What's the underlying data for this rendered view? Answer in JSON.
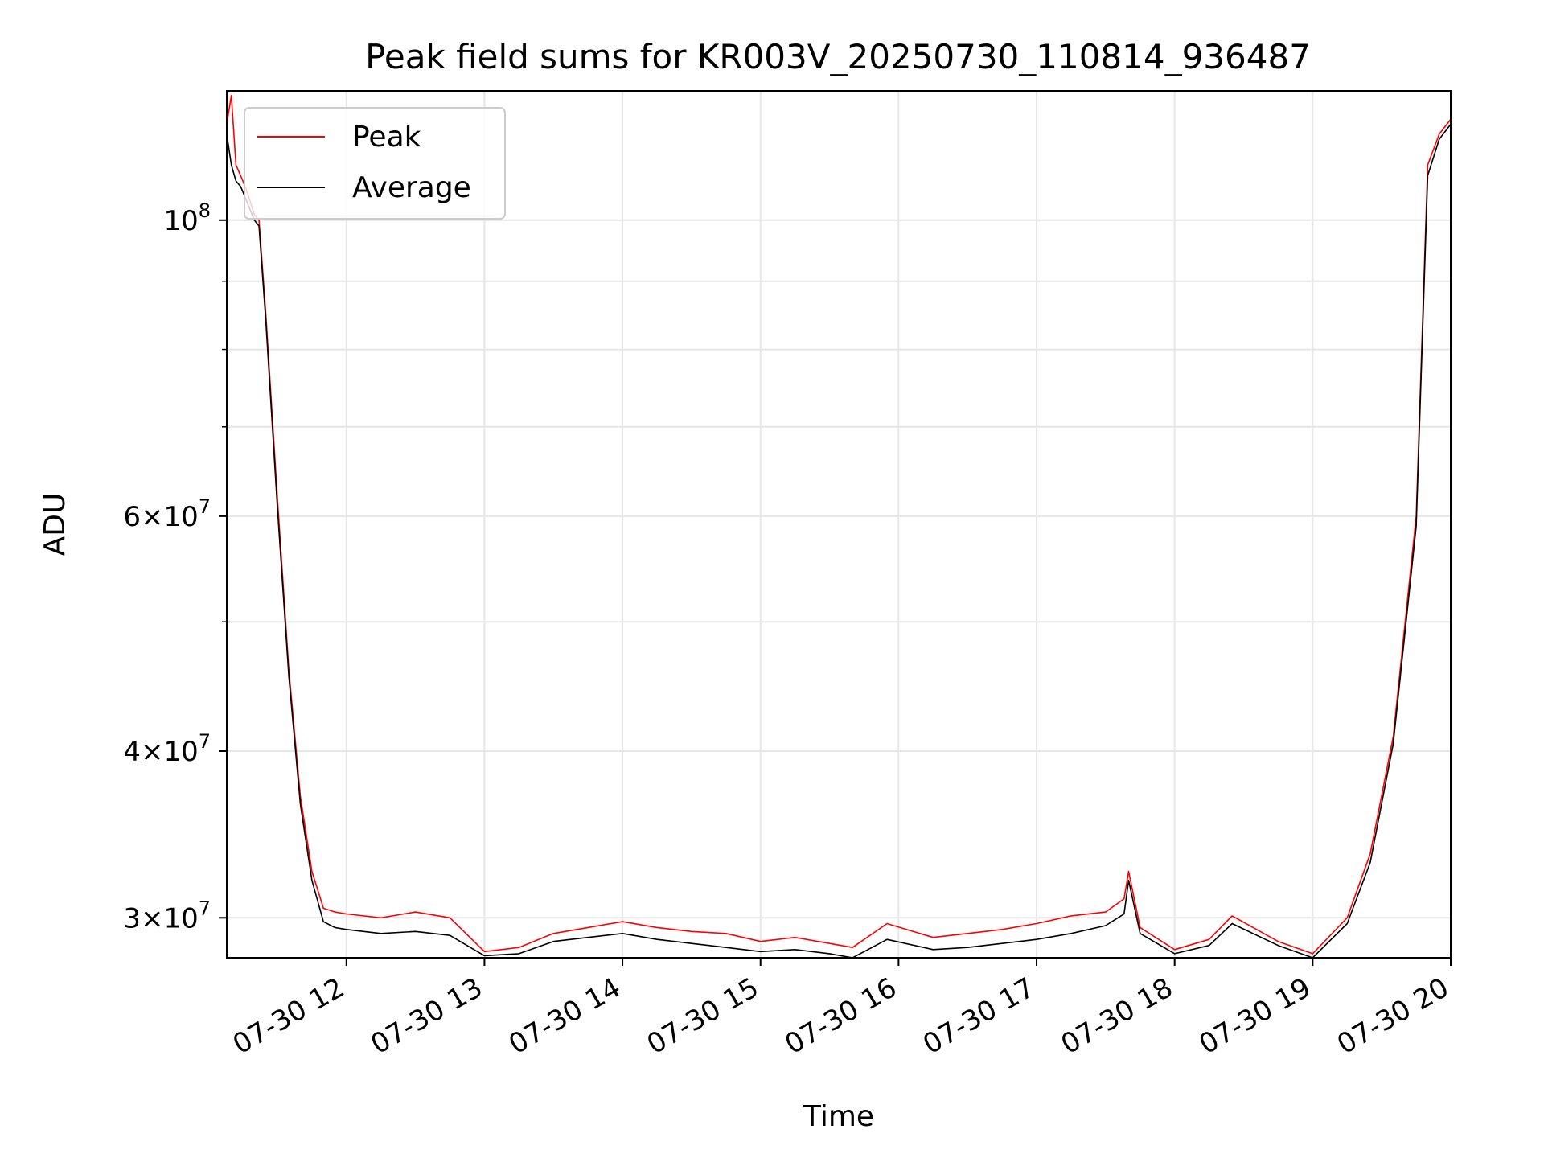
{
  "chart_data": {
    "type": "line",
    "title": "Peak field sums for KR003V_20250730_110814_936487",
    "xlabel": "Time",
    "ylabel": "ADU",
    "x_scale": "time",
    "y_scale": "log",
    "xlim": [
      "2025-07-30T11:08",
      "2025-07-30T20:00"
    ],
    "ylim": [
      28000000,
      125000000
    ],
    "x_ticks": [
      {
        "value": "2025-07-30T12:00",
        "label": "07-30 12"
      },
      {
        "value": "2025-07-30T13:00",
        "label": "07-30 13"
      },
      {
        "value": "2025-07-30T14:00",
        "label": "07-30 14"
      },
      {
        "value": "2025-07-30T15:00",
        "label": "07-30 15"
      },
      {
        "value": "2025-07-30T16:00",
        "label": "07-30 16"
      },
      {
        "value": "2025-07-30T17:00",
        "label": "07-30 17"
      },
      {
        "value": "2025-07-30T18:00",
        "label": "07-30 18"
      },
      {
        "value": "2025-07-30T19:00",
        "label": "07-30 19"
      },
      {
        "value": "2025-07-30T20:00",
        "label": "07-30 20"
      }
    ],
    "y_ticks": [
      {
        "value": 30000000,
        "mantissa": "3",
        "exponent": "7"
      },
      {
        "value": 40000000,
        "mantissa": "4",
        "exponent": "7"
      },
      {
        "value": 60000000,
        "mantissa": "6",
        "exponent": "7"
      },
      {
        "value": 100000000,
        "mantissa": "",
        "exponent": "8"
      }
    ],
    "y_minor_ticks": [
      50000000,
      70000000,
      80000000,
      90000000
    ],
    "grid": true,
    "legend_position": "top-left",
    "series": [
      {
        "name": "Peak",
        "color": "#ff0000",
        "x": [
          "2025-07-30T11:08",
          "2025-07-30T11:10",
          "2025-07-30T11:12",
          "2025-07-30T11:14",
          "2025-07-30T11:16",
          "2025-07-30T11:20",
          "2025-07-30T11:22",
          "2025-07-30T11:25",
          "2025-07-30T11:30",
          "2025-07-30T11:35",
          "2025-07-30T11:40",
          "2025-07-30T11:45",
          "2025-07-30T11:50",
          "2025-07-30T11:55",
          "2025-07-30T12:00",
          "2025-07-30T12:15",
          "2025-07-30T12:30",
          "2025-07-30T12:45",
          "2025-07-30T13:00",
          "2025-07-30T13:15",
          "2025-07-30T13:30",
          "2025-07-30T13:45",
          "2025-07-30T14:00",
          "2025-07-30T14:15",
          "2025-07-30T14:30",
          "2025-07-30T14:45",
          "2025-07-30T15:00",
          "2025-07-30T15:15",
          "2025-07-30T15:30",
          "2025-07-30T15:40",
          "2025-07-30T15:55",
          "2025-07-30T16:15",
          "2025-07-30T16:30",
          "2025-07-30T16:45",
          "2025-07-30T17:00",
          "2025-07-30T17:15",
          "2025-07-30T17:30",
          "2025-07-30T17:38",
          "2025-07-30T17:40",
          "2025-07-30T17:45",
          "2025-07-30T18:00",
          "2025-07-30T18:15",
          "2025-07-30T18:25",
          "2025-07-30T18:45",
          "2025-07-30T19:00",
          "2025-07-30T19:15",
          "2025-07-30T19:25",
          "2025-07-30T19:35",
          "2025-07-30T19:45",
          "2025-07-30T19:50",
          "2025-07-30T19:55",
          "2025-07-30T20:00"
        ],
        "y": [
          118000000,
          124000000,
          110000000,
          108000000,
          106000000,
          101000000,
          100000000,
          85000000,
          62000000,
          46000000,
          37000000,
          32500000,
          30500000,
          30300000,
          30200000,
          30000000,
          30300000,
          30000000,
          28300000,
          28500000,
          29200000,
          29500000,
          29800000,
          29500000,
          29300000,
          29200000,
          28800000,
          29000000,
          28700000,
          28500000,
          29700000,
          29000000,
          29200000,
          29400000,
          29700000,
          30100000,
          30300000,
          31000000,
          32500000,
          29500000,
          28400000,
          28900000,
          30100000,
          28800000,
          28200000,
          30000000,
          33500000,
          41000000,
          60000000,
          110000000,
          116000000,
          119000000
        ]
      },
      {
        "name": "Average",
        "color": "#000000",
        "x": [
          "2025-07-30T11:08",
          "2025-07-30T11:10",
          "2025-07-30T11:12",
          "2025-07-30T11:14",
          "2025-07-30T11:16",
          "2025-07-30T11:20",
          "2025-07-30T11:22",
          "2025-07-30T11:25",
          "2025-07-30T11:30",
          "2025-07-30T11:35",
          "2025-07-30T11:40",
          "2025-07-30T11:45",
          "2025-07-30T11:50",
          "2025-07-30T11:55",
          "2025-07-30T12:00",
          "2025-07-30T12:15",
          "2025-07-30T12:30",
          "2025-07-30T12:45",
          "2025-07-30T13:00",
          "2025-07-30T13:15",
          "2025-07-30T13:30",
          "2025-07-30T13:45",
          "2025-07-30T14:00",
          "2025-07-30T14:15",
          "2025-07-30T14:30",
          "2025-07-30T14:45",
          "2025-07-30T15:00",
          "2025-07-30T15:15",
          "2025-07-30T15:30",
          "2025-07-30T15:40",
          "2025-07-30T15:55",
          "2025-07-30T16:15",
          "2025-07-30T16:30",
          "2025-07-30T16:45",
          "2025-07-30T17:00",
          "2025-07-30T17:15",
          "2025-07-30T17:30",
          "2025-07-30T17:38",
          "2025-07-30T17:40",
          "2025-07-30T17:45",
          "2025-07-30T18:00",
          "2025-07-30T18:15",
          "2025-07-30T18:25",
          "2025-07-30T18:45",
          "2025-07-30T19:00",
          "2025-07-30T19:15",
          "2025-07-30T19:25",
          "2025-07-30T19:35",
          "2025-07-30T19:45",
          "2025-07-30T19:50",
          "2025-07-30T19:55",
          "2025-07-30T20:00"
        ],
        "y": [
          116000000,
          110000000,
          107000000,
          106000000,
          104000000,
          100000000,
          99000000,
          84000000,
          61000000,
          45500000,
          36500000,
          32000000,
          29800000,
          29500000,
          29400000,
          29200000,
          29300000,
          29100000,
          28100000,
          28200000,
          28800000,
          29000000,
          29200000,
          28900000,
          28700000,
          28500000,
          28300000,
          28400000,
          28200000,
          28000000,
          28900000,
          28400000,
          28500000,
          28700000,
          28900000,
          29200000,
          29600000,
          30200000,
          32000000,
          29200000,
          28200000,
          28600000,
          29700000,
          28600000,
          28000000,
          29700000,
          33000000,
          40500000,
          59000000,
          108000000,
          115000000,
          118000000
        ]
      }
    ]
  }
}
